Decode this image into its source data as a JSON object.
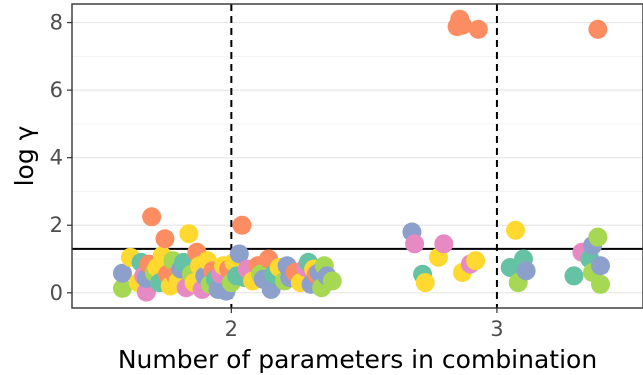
{
  "chart_data": {
    "type": "scatter",
    "xlabel": "Number of parameters in combination",
    "ylabel": "log γ",
    "xlim": [
      1.4,
      3.55
    ],
    "ylim": [
      -0.45,
      8.55
    ],
    "x_ticks": [
      2,
      3
    ],
    "x_tick_labels": [
      "2",
      "3"
    ],
    "y_ticks": [
      0,
      2,
      4,
      6,
      8
    ],
    "y_tick_labels": [
      "0",
      "2",
      "4",
      "6",
      "8"
    ],
    "grid": true,
    "legend": "none",
    "vlines": [
      2,
      3
    ],
    "hline": 1.3,
    "palette": {
      "teal": "#66c2a5",
      "orange": "#fc8d62",
      "blue": "#8da0cb",
      "pink": "#e78ac3",
      "green": "#a6d854",
      "yellow": "#ffd92f"
    },
    "points": [
      {
        "x": 1.59,
        "y": 0.13,
        "c": "green"
      },
      {
        "x": 1.59,
        "y": 0.58,
        "c": "blue"
      },
      {
        "x": 1.62,
        "y": 1.05,
        "c": "yellow"
      },
      {
        "x": 1.65,
        "y": 0.3,
        "c": "yellow"
      },
      {
        "x": 1.66,
        "y": 0.9,
        "c": "teal"
      },
      {
        "x": 1.67,
        "y": 0.5,
        "c": "pink"
      },
      {
        "x": 1.68,
        "y": 0.02,
        "c": "pink"
      },
      {
        "x": 1.68,
        "y": 0.42,
        "c": "blue"
      },
      {
        "x": 1.69,
        "y": 0.85,
        "c": "orange"
      },
      {
        "x": 1.7,
        "y": 2.25,
        "c": "orange"
      },
      {
        "x": 1.71,
        "y": 0.6,
        "c": "green"
      },
      {
        "x": 1.72,
        "y": 0.75,
        "c": "yellow"
      },
      {
        "x": 1.73,
        "y": 0.3,
        "c": "teal"
      },
      {
        "x": 1.74,
        "y": 1.1,
        "c": "yellow"
      },
      {
        "x": 1.75,
        "y": 1.6,
        "c": "orange"
      },
      {
        "x": 1.76,
        "y": 0.55,
        "c": "orange"
      },
      {
        "x": 1.77,
        "y": 0.2,
        "c": "yellow"
      },
      {
        "x": 1.78,
        "y": 0.95,
        "c": "green"
      },
      {
        "x": 1.79,
        "y": 0.5,
        "c": "orange"
      },
      {
        "x": 1.8,
        "y": 0.35,
        "c": "yellow"
      },
      {
        "x": 1.81,
        "y": 0.7,
        "c": "blue"
      },
      {
        "x": 1.82,
        "y": 0.9,
        "c": "teal"
      },
      {
        "x": 1.83,
        "y": 0.15,
        "c": "pink"
      },
      {
        "x": 1.84,
        "y": 1.75,
        "c": "yellow"
      },
      {
        "x": 1.85,
        "y": 0.55,
        "c": "green"
      },
      {
        "x": 1.86,
        "y": 0.3,
        "c": "yellow"
      },
      {
        "x": 1.87,
        "y": 1.2,
        "c": "orange"
      },
      {
        "x": 1.88,
        "y": 0.8,
        "c": "yellow"
      },
      {
        "x": 1.89,
        "y": 0.1,
        "c": "pink"
      },
      {
        "x": 1.9,
        "y": 0.5,
        "c": "blue"
      },
      {
        "x": 1.91,
        "y": 0.95,
        "c": "yellow"
      },
      {
        "x": 1.92,
        "y": 0.25,
        "c": "green"
      },
      {
        "x": 1.93,
        "y": 0.65,
        "c": "orange"
      },
      {
        "x": 1.94,
        "y": 0.4,
        "c": "teal"
      },
      {
        "x": 1.95,
        "y": 0.1,
        "c": "blue"
      },
      {
        "x": 1.96,
        "y": 0.55,
        "c": "pink"
      },
      {
        "x": 1.97,
        "y": 0.8,
        "c": "yellow"
      },
      {
        "x": 1.98,
        "y": 0.05,
        "c": "blue"
      },
      {
        "x": 1.99,
        "y": 0.7,
        "c": "orange"
      },
      {
        "x": 2.0,
        "y": 0.3,
        "c": "green"
      },
      {
        "x": 2.01,
        "y": 0.9,
        "c": "yellow"
      },
      {
        "x": 2.02,
        "y": 0.5,
        "c": "teal"
      },
      {
        "x": 2.03,
        "y": 1.15,
        "c": "blue"
      },
      {
        "x": 2.04,
        "y": 2.0,
        "c": "orange"
      },
      {
        "x": 2.05,
        "y": 0.45,
        "c": "teal"
      },
      {
        "x": 2.06,
        "y": 0.7,
        "c": "pink"
      },
      {
        "x": 2.08,
        "y": 0.35,
        "c": "yellow"
      },
      {
        "x": 2.1,
        "y": 0.8,
        "c": "orange"
      },
      {
        "x": 2.11,
        "y": 0.55,
        "c": "green"
      },
      {
        "x": 2.12,
        "y": 0.4,
        "c": "blue"
      },
      {
        "x": 2.14,
        "y": 1.0,
        "c": "orange"
      },
      {
        "x": 2.15,
        "y": 0.1,
        "c": "blue"
      },
      {
        "x": 2.16,
        "y": 0.55,
        "c": "teal"
      },
      {
        "x": 2.18,
        "y": 0.75,
        "c": "yellow"
      },
      {
        "x": 2.2,
        "y": 0.35,
        "c": "green"
      },
      {
        "x": 2.21,
        "y": 0.8,
        "c": "blue"
      },
      {
        "x": 2.22,
        "y": 0.45,
        "c": "blue"
      },
      {
        "x": 2.24,
        "y": 0.6,
        "c": "orange"
      },
      {
        "x": 2.26,
        "y": 0.3,
        "c": "yellow"
      },
      {
        "x": 2.28,
        "y": 0.75,
        "c": "pink"
      },
      {
        "x": 2.29,
        "y": 0.9,
        "c": "teal"
      },
      {
        "x": 2.3,
        "y": 0.25,
        "c": "blue"
      },
      {
        "x": 2.31,
        "y": 0.7,
        "c": "yellow"
      },
      {
        "x": 2.32,
        "y": 0.55,
        "c": "orange"
      },
      {
        "x": 2.33,
        "y": 0.6,
        "c": "blue"
      },
      {
        "x": 2.34,
        "y": 0.15,
        "c": "green"
      },
      {
        "x": 2.35,
        "y": 0.8,
        "c": "green"
      },
      {
        "x": 2.36,
        "y": 0.5,
        "c": "blue"
      },
      {
        "x": 2.38,
        "y": 0.35,
        "c": "green"
      },
      {
        "x": 2.68,
        "y": 1.8,
        "c": "blue"
      },
      {
        "x": 2.69,
        "y": 1.45,
        "c": "pink"
      },
      {
        "x": 2.72,
        "y": 0.55,
        "c": "teal"
      },
      {
        "x": 2.73,
        "y": 0.3,
        "c": "yellow"
      },
      {
        "x": 2.78,
        "y": 1.05,
        "c": "yellow"
      },
      {
        "x": 2.8,
        "y": 1.45,
        "c": "pink"
      },
      {
        "x": 2.85,
        "y": 7.88,
        "c": "orange"
      },
      {
        "x": 2.86,
        "y": 8.1,
        "c": "orange"
      },
      {
        "x": 2.87,
        "y": 0.6,
        "c": "yellow"
      },
      {
        "x": 2.87,
        "y": 7.92,
        "c": "orange"
      },
      {
        "x": 2.9,
        "y": 0.85,
        "c": "pink"
      },
      {
        "x": 2.92,
        "y": 0.95,
        "c": "yellow"
      },
      {
        "x": 2.93,
        "y": 7.8,
        "c": "orange"
      },
      {
        "x": 3.05,
        "y": 0.75,
        "c": "teal"
      },
      {
        "x": 3.07,
        "y": 1.85,
        "c": "yellow"
      },
      {
        "x": 3.08,
        "y": 0.3,
        "c": "green"
      },
      {
        "x": 3.1,
        "y": 1.0,
        "c": "teal"
      },
      {
        "x": 3.11,
        "y": 0.65,
        "c": "blue"
      },
      {
        "x": 3.29,
        "y": 0.5,
        "c": "teal"
      },
      {
        "x": 3.32,
        "y": 1.2,
        "c": "pink"
      },
      {
        "x": 3.35,
        "y": 1.0,
        "c": "teal"
      },
      {
        "x": 3.36,
        "y": 0.6,
        "c": "green"
      },
      {
        "x": 3.36,
        "y": 1.4,
        "c": "blue"
      },
      {
        "x": 3.38,
        "y": 1.65,
        "c": "green"
      },
      {
        "x": 3.38,
        "y": 7.8,
        "c": "orange"
      },
      {
        "x": 3.39,
        "y": 0.25,
        "c": "green"
      },
      {
        "x": 3.39,
        "y": 0.8,
        "c": "blue"
      }
    ]
  }
}
